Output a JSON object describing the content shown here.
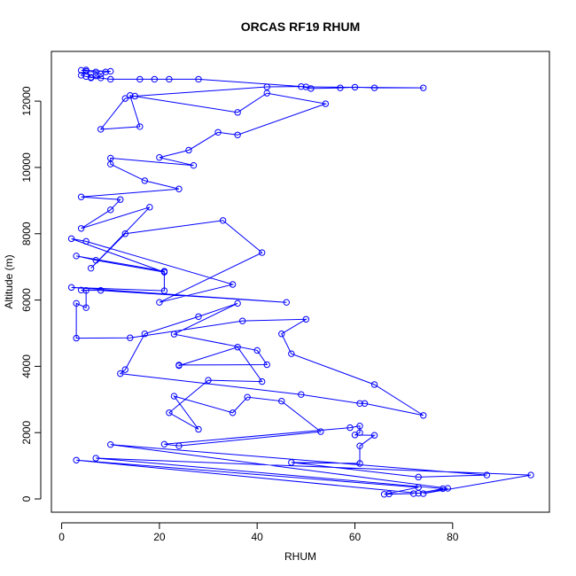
{
  "chart_data": {
    "type": "line",
    "markers": true,
    "title": "ORCAS RF19 RHUM",
    "x_label": "RHUM",
    "y_label": "Altitude (m)",
    "color": "#0000ff",
    "x": [
      67,
      72,
      66,
      73,
      3,
      73,
      78,
      7,
      96,
      74,
      79,
      10,
      87,
      73,
      47,
      61,
      61,
      64,
      60,
      61,
      61,
      59,
      21,
      24,
      53,
      45,
      38,
      35,
      23,
      28,
      22,
      30,
      41,
      36,
      24,
      24,
      42,
      40,
      23,
      36,
      28,
      17,
      13,
      12,
      49,
      61,
      62,
      74,
      64,
      47,
      45,
      50,
      37,
      14,
      3,
      3,
      5,
      5,
      4,
      8,
      46,
      2,
      21,
      21,
      3,
      7,
      21,
      2,
      5,
      35,
      20,
      41,
      33,
      13,
      6,
      18,
      4,
      10,
      12,
      4,
      24,
      17,
      10,
      10,
      27,
      20,
      26,
      32,
      36,
      54,
      42,
      36,
      14,
      16,
      8,
      13,
      15,
      42,
      49,
      51,
      57,
      60,
      64,
      74,
      50,
      28,
      22,
      19,
      16,
      10,
      6,
      5,
      4,
      5,
      7,
      8,
      9,
      10,
      4,
      5,
      6,
      7,
      8
    ],
    "values": [
      150,
      160,
      140,
      350,
      1170,
      170,
      310,
      1230,
      720,
      160,
      320,
      1640,
      720,
      660,
      1100,
      1070,
      1600,
      1920,
      1930,
      2000,
      2200,
      2150,
      1650,
      1600,
      2030,
      2950,
      3070,
      2600,
      3100,
      2100,
      2600,
      3580,
      3540,
      4580,
      4020,
      4040,
      4050,
      4480,
      4970,
      5900,
      5500,
      4980,
      3900,
      3780,
      3150,
      2880,
      2880,
      2520,
      3450,
      4380,
      4980,
      5420,
      5370,
      4860,
      4850,
      5900,
      5770,
      6290,
      6300,
      6290,
      5930,
      6380,
      6280,
      6870,
      7330,
      7200,
      6840,
      7850,
      7770,
      6470,
      5930,
      7430,
      8400,
      8000,
      6960,
      8800,
      8160,
      8720,
      9030,
      9110,
      9350,
      9600,
      10100,
      10280,
      10060,
      10300,
      10520,
      11060,
      10980,
      11920,
      12240,
      11660,
      12170,
      11230,
      11150,
      12080,
      12150,
      12430,
      12440,
      12380,
      12400,
      12420,
      12400,
      12400,
      12430,
      12660,
      12660,
      12660,
      12660,
      12660,
      12720,
      12740,
      12780,
      12900,
      12880,
      12820,
      12880,
      12900,
      12930,
      12940,
      12700,
      12760,
      12700
    ],
    "xlim": [
      -2.1,
      99.8
    ],
    "ylim": [
      -400,
      13500
    ],
    "xticks": [
      0,
      20,
      40,
      60,
      80
    ],
    "yticks": [
      0,
      2000,
      4000,
      6000,
      8000,
      10000,
      12000
    ]
  }
}
